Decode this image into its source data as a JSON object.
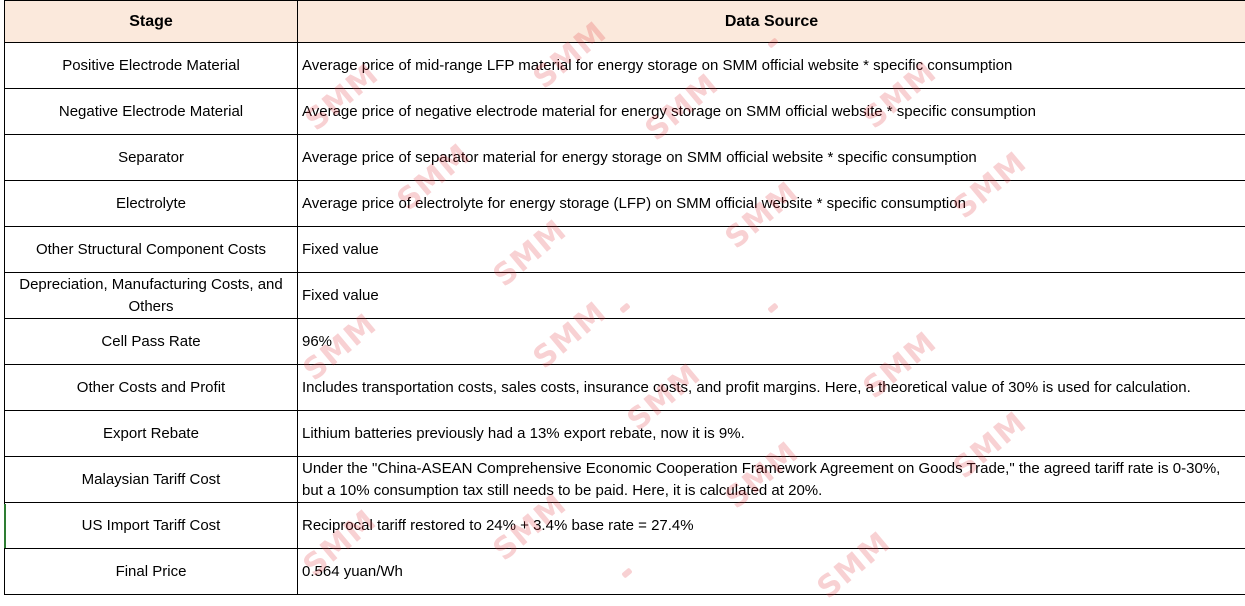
{
  "table": {
    "headers": {
      "stage": "Stage",
      "source": "Data Source"
    },
    "rows": [
      {
        "stage": "Positive Electrode Material",
        "source": "Average price of mid-range LFP material for energy storage on SMM official website * specific consumption"
      },
      {
        "stage": "Negative Electrode Material",
        "source": "Average price of negative electrode material for energy storage on SMM official website * specific consumption"
      },
      {
        "stage": "Separator",
        "source": "Average price of separator material for energy storage on SMM official website * specific consumption"
      },
      {
        "stage": "Electrolyte",
        "source": "Average price of electrolyte for energy storage (LFP) on SMM official website * specific consumption"
      },
      {
        "stage": "Other Structural Component Costs",
        "source": "Fixed value"
      },
      {
        "stage": "Depreciation, Manufacturing Costs, and Others",
        "source": "Fixed value"
      },
      {
        "stage": "Cell Pass Rate",
        "source": "96%"
      },
      {
        "stage": "Other Costs and Profit",
        "source": "Includes transportation costs, sales costs, insurance costs, and profit margins. Here, a theoretical value of 30% is used for calculation."
      },
      {
        "stage": "Export Rebate",
        "source": "Lithium batteries previously had a 13% export rebate, now it is 9%."
      },
      {
        "stage": "Malaysian Tariff Cost",
        "source": "Under the \"China-ASEAN Comprehensive Economic Cooperation Framework Agreement on Goods Trade,\" the agreed tariff rate is 0-30%, but a 10% consumption tax still needs to be paid. Here, it is calculated at 20%."
      },
      {
        "stage": "US Import Tariff Cost",
        "source": "Reciprocal tariff restored to 24% + 3.4% base rate = 27.4%"
      },
      {
        "stage": "Final Price",
        "source": "0.564 yuan/Wh"
      }
    ]
  },
  "watermark": {
    "text": "SMM",
    "color": "#e12d37"
  },
  "colors": {
    "header_bg": "#fbe9dc",
    "border": "#000000",
    "accent_left": "#2e7d32"
  }
}
